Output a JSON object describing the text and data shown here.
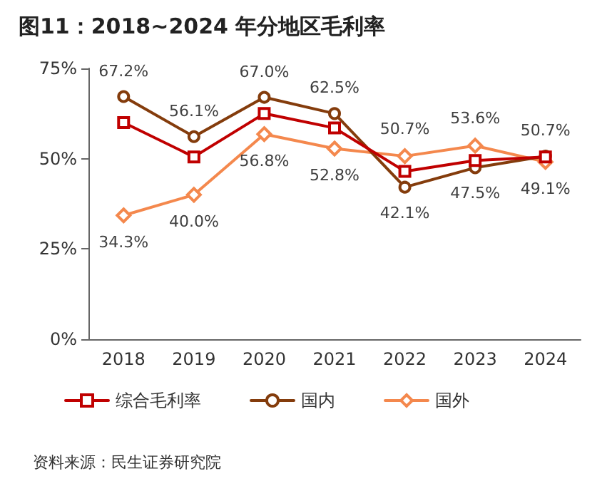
{
  "chart_data": {
    "type": "line",
    "title": "图11：2018~2024 年分地区毛利率",
    "categories": [
      "2018",
      "2019",
      "2020",
      "2021",
      "2022",
      "2023",
      "2024"
    ],
    "series": [
      {
        "name": "综合毛利率",
        "color": "#c00000",
        "marker": "square",
        "values": [
          60,
          50.5,
          62.5,
          58.5,
          46.5,
          49.5,
          50.5
        ]
      },
      {
        "name": "国内",
        "color": "#843c0c",
        "marker": "circle",
        "values": [
          67.2,
          56.1,
          67.0,
          62.5,
          42.1,
          47.5,
          50.7
        ],
        "value_labels": [
          "67.2%",
          "56.1%",
          "67.0%",
          "62.5%",
          "42.1%",
          "47.5%",
          "50.7%"
        ]
      },
      {
        "name": "国外",
        "color": "#f4884d",
        "marker": "diamond",
        "values": [
          34.3,
          40.0,
          56.8,
          52.8,
          50.7,
          53.6,
          49.1
        ],
        "value_labels": [
          "34.3%",
          "40.0%",
          "56.8%",
          "52.8%",
          "50.7%",
          "53.6%",
          "49.1%"
        ]
      }
    ],
    "ylim": [
      0,
      75
    ],
    "yticks": [
      {
        "value": 0,
        "label": "0%"
      },
      {
        "value": 25,
        "label": "25%"
      },
      {
        "value": 50,
        "label": "50%"
      },
      {
        "value": 75,
        "label": "75%"
      }
    ],
    "grid": false,
    "legend": "bottom",
    "annotations": [
      "资料来源：民生证券研究院"
    ]
  }
}
